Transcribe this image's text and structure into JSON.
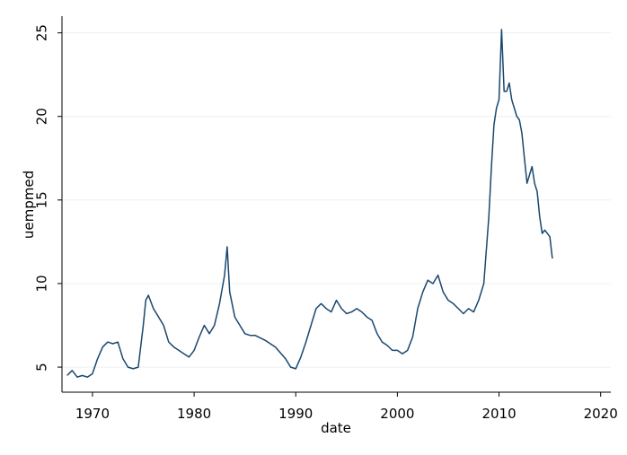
{
  "chart_data": {
    "type": "line",
    "xlabel": "date",
    "ylabel": "uempmed",
    "xlim": [
      1967,
      2021
    ],
    "ylim": [
      3.5,
      26
    ],
    "x_ticks": [
      1970,
      1980,
      1990,
      2000,
      2010,
      2020
    ],
    "y_ticks": [
      5,
      10,
      15,
      20,
      25
    ],
    "grid": "horizontal",
    "legend": "none",
    "line_color": "#1a476f",
    "series": [
      {
        "x": [
          1967.5,
          1968.0,
          1968.5,
          1969.0,
          1969.5,
          1970.0,
          1970.5,
          1971.0,
          1971.5,
          1972.0,
          1972.5,
          1973.0,
          1973.5,
          1974.0,
          1974.5,
          1975.0,
          1975.25,
          1975.5,
          1976.0,
          1976.5,
          1977.0,
          1977.5,
          1978.0,
          1978.5,
          1979.0,
          1979.5,
          1980.0,
          1980.5,
          1981.0,
          1981.5,
          1982.0,
          1982.5,
          1983.0,
          1983.25,
          1983.5,
          1984.0,
          1984.5,
          1985.0,
          1985.5,
          1986.0,
          1987.0,
          1988.0,
          1989.0,
          1989.5,
          1990.0,
          1990.5,
          1991.0,
          1991.5,
          1992.0,
          1992.5,
          1993.0,
          1993.5,
          1994.0,
          1994.5,
          1995.0,
          1995.5,
          1996.0,
          1996.5,
          1997.0,
          1997.5,
          1998.0,
          1998.5,
          1999.0,
          1999.5,
          2000.0,
          2000.5,
          2001.0,
          2001.5,
          2002.0,
          2002.5,
          2003.0,
          2003.5,
          2004.0,
          2004.5,
          2005.0,
          2005.5,
          2006.0,
          2006.5,
          2007.0,
          2007.5,
          2008.0,
          2008.5,
          2009.0,
          2009.25,
          2009.5,
          2009.75,
          2010.0,
          2010.25,
          2010.5,
          2010.75,
          2011.0,
          2011.25,
          2011.5,
          2011.75,
          2012.0,
          2012.25,
          2012.5,
          2012.75,
          2013.0,
          2013.25,
          2013.5,
          2013.75,
          2014.0,
          2014.25,
          2014.5,
          2014.75,
          2015.0,
          2015.25
        ],
        "values": [
          4.5,
          4.8,
          4.4,
          4.5,
          4.4,
          4.6,
          5.5,
          6.2,
          6.5,
          6.4,
          6.5,
          5.5,
          5.0,
          4.9,
          5.0,
          7.5,
          9.0,
          9.3,
          8.5,
          8.0,
          7.5,
          6.5,
          6.2,
          6.0,
          5.8,
          5.6,
          6.0,
          6.8,
          7.5,
          7.0,
          7.5,
          8.8,
          10.5,
          12.2,
          9.5,
          8.0,
          7.5,
          7.0,
          6.9,
          6.9,
          6.6,
          6.2,
          5.5,
          5.0,
          4.9,
          5.6,
          6.5,
          7.5,
          8.5,
          8.8,
          8.5,
          8.3,
          9.0,
          8.5,
          8.2,
          8.3,
          8.5,
          8.3,
          8.0,
          7.8,
          7.0,
          6.5,
          6.3,
          6.0,
          6.0,
          5.8,
          6.0,
          6.8,
          8.5,
          9.5,
          10.2,
          10.0,
          10.5,
          9.5,
          9.0,
          8.8,
          8.5,
          8.2,
          8.5,
          8.3,
          9.0,
          10.0,
          14.0,
          17.0,
          19.5,
          20.5,
          21.0,
          25.2,
          21.5,
          21.5,
          22.0,
          21.0,
          20.5,
          20.0,
          19.8,
          19.0,
          17.5,
          16.0,
          16.5,
          17.0,
          16.0,
          15.5,
          14.0,
          13.0,
          13.2,
          13.0,
          12.8,
          11.5
        ]
      }
    ]
  }
}
